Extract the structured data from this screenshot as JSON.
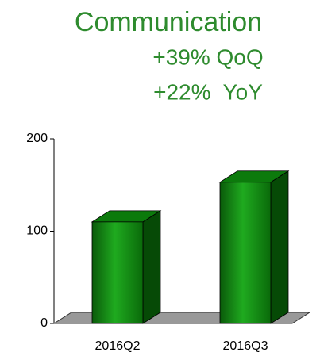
{
  "chart_data": {
    "type": "bar3d",
    "title": "Communication",
    "subtitle": [
      "+39% QoQ",
      "+22%  YoY"
    ],
    "categories": [
      "2016Q2",
      "2016Q3"
    ],
    "values": [
      110,
      153
    ],
    "color": "#128a12",
    "ylim": [
      0,
      200
    ],
    "yticks": [
      0,
      100,
      200
    ]
  }
}
